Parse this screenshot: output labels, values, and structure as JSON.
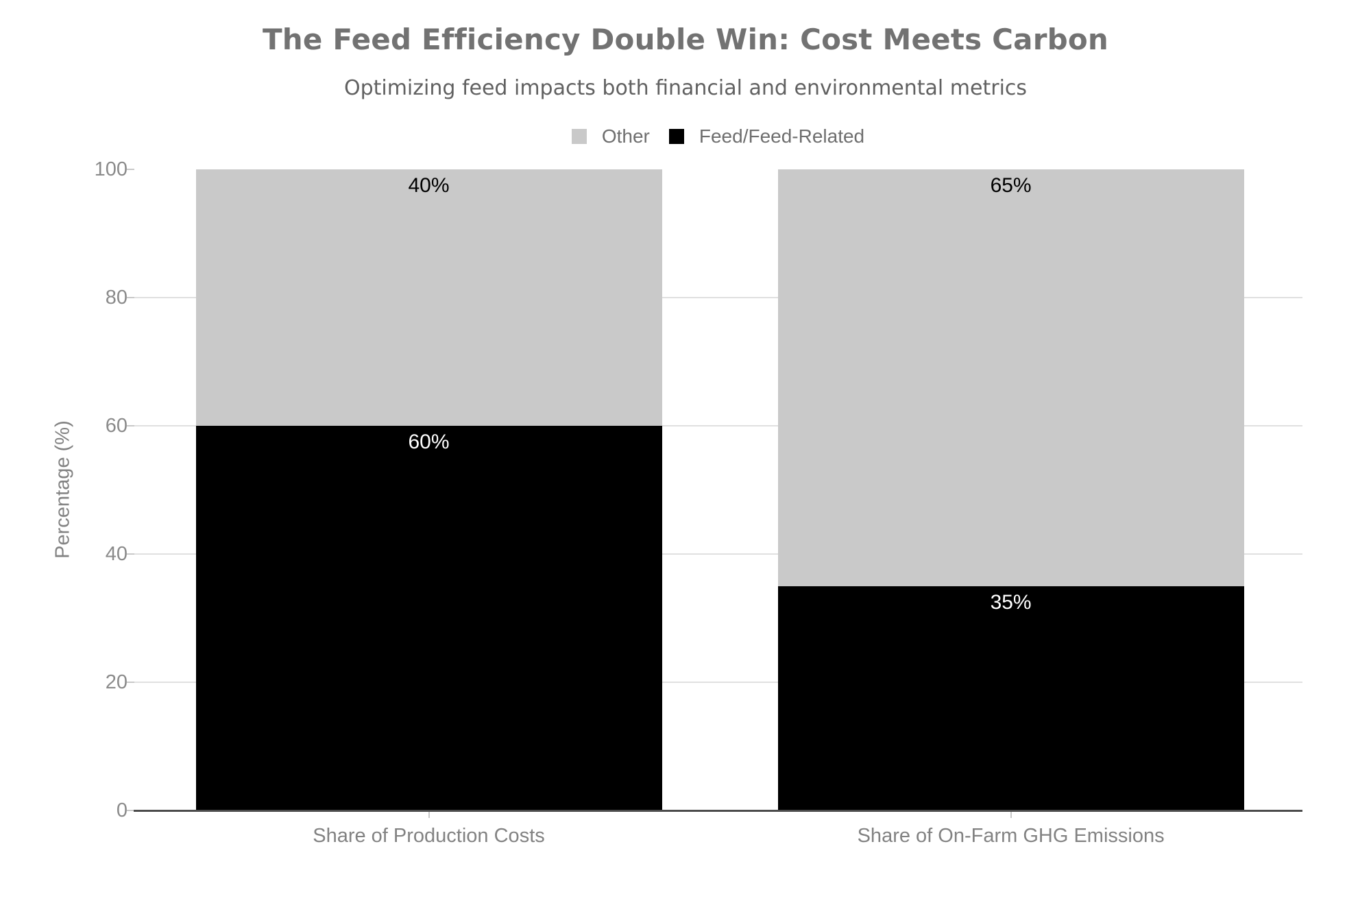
{
  "chart_data": {
    "type": "bar",
    "stacked": true,
    "title": "The Feed Efficiency Double Win: Cost Meets Carbon",
    "subtitle": "Optimizing feed impacts both financial and environmental metrics",
    "categories": [
      "Share of Production Costs",
      "Share of On-Farm GHG Emissions"
    ],
    "series": [
      {
        "name": "Feed/Feed-Related",
        "color": "#000000",
        "label_color": "#ffffff",
        "values": [
          60,
          35
        ],
        "data_labels": [
          "60%",
          "35%"
        ]
      },
      {
        "name": "Other",
        "color": "#c9c9c9",
        "label_color": "#000000",
        "values": [
          40,
          65
        ],
        "data_labels": [
          "40%",
          "65%"
        ]
      }
    ],
    "xlabel": "",
    "ylabel": "Percentage (%)",
    "ylim": [
      0,
      100
    ],
    "yticks": [
      0,
      20,
      40,
      60,
      80,
      100
    ],
    "gridlines": [
      20,
      40,
      60,
      80
    ],
    "grid": true,
    "legend_position": "top"
  },
  "legend": {
    "items": [
      {
        "label": "Other",
        "color": "#c9c9c9"
      },
      {
        "label": "Feed/Feed-Related",
        "color": "#000000"
      }
    ]
  },
  "palette": {
    "background": "#ffffff",
    "axis_line": "#4c4c4c",
    "gridline": "#e0e0e0",
    "tick_mark": "#c8c8c8",
    "tick_label": "#8a8a8a",
    "title_color": "#727272",
    "subtitle_color": "#616161",
    "bar_black": "#000000",
    "bar_gray": "#c9c9c9"
  }
}
